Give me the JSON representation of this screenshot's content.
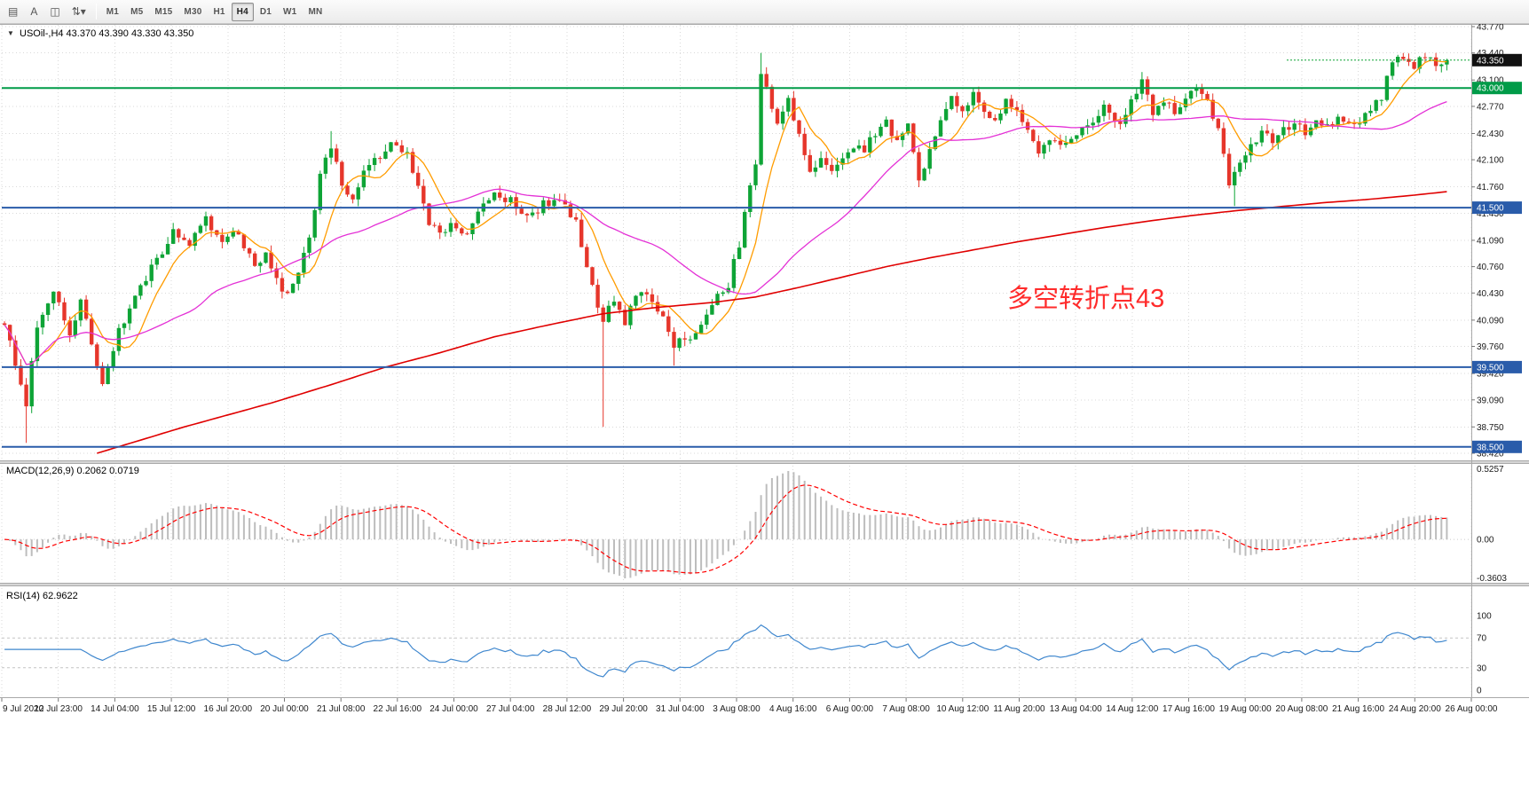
{
  "toolbar": {
    "icons": [
      {
        "name": "window-menu-icon",
        "glyph": "▤"
      },
      {
        "name": "text-label-icon",
        "glyph": "A"
      },
      {
        "name": "chart-template-icon",
        "glyph": "◫"
      },
      {
        "name": "updown-arrows-dropdown-icon",
        "glyph": "⇅▾"
      }
    ],
    "timeframes": [
      "M1",
      "M5",
      "M15",
      "M30",
      "H1",
      "H4",
      "D1",
      "W1",
      "MN"
    ],
    "selected_timeframe": "H4"
  },
  "chart_data": {
    "type": "candlestick",
    "title": "USOil-,H4 43.370 43.390 43.330 43.350",
    "symbol": "USOil-",
    "timeframe": "H4",
    "collapse_glyph": "▼",
    "ohlc_display": {
      "open": "43.370",
      "high": "43.390",
      "low": "43.330",
      "close": "43.350"
    },
    "price_axis": {
      "min": 38.42,
      "max": 43.77,
      "ticks": [
        "43.770",
        "43.440",
        "43.100",
        "42.770",
        "42.430",
        "42.100",
        "41.760",
        "41.430",
        "41.090",
        "40.760",
        "40.430",
        "40.090",
        "39.760",
        "39.420",
        "39.090",
        "38.750",
        "38.420"
      ]
    },
    "current_price": {
      "value": 43.35,
      "label": "43.350"
    },
    "levels": [
      {
        "price": 43.0,
        "label": "43.000",
        "color": "#009B48",
        "width": 2
      },
      {
        "price": 41.5,
        "label": "41.500",
        "color": "#2A5CAA",
        "width": 2
      },
      {
        "price": 39.5,
        "label": "39.500",
        "color": "#2A5CAA",
        "width": 2
      },
      {
        "price": 38.5,
        "label": "38.500",
        "color": "#2A5CAA",
        "width": 2
      }
    ],
    "colors": {
      "up": "#0EA436",
      "down": "#E6362B",
      "ma_fast": "#FF9C00",
      "ma_mid": "#E431D6",
      "ma_slow": "#E00000",
      "macd_hist": "#BDBDBD",
      "macd_signal": "#FF0000",
      "rsi": "#3F87CE",
      "grid": "#D9D9D9",
      "badge_current": "#111111"
    },
    "n_candles": 266,
    "close_waypoints": [
      [
        0,
        40.05
      ],
      [
        2,
        39.55
      ],
      [
        4,
        39.05
      ],
      [
        6,
        40.0
      ],
      [
        9,
        40.45
      ],
      [
        12,
        39.95
      ],
      [
        14,
        40.3
      ],
      [
        16,
        39.8
      ],
      [
        18,
        39.25
      ],
      [
        21,
        39.95
      ],
      [
        25,
        40.5
      ],
      [
        29,
        40.95
      ],
      [
        31,
        41.2
      ],
      [
        34,
        41.05
      ],
      [
        37,
        41.35
      ],
      [
        40,
        41.05
      ],
      [
        43,
        41.2
      ],
      [
        46,
        40.75
      ],
      [
        48,
        40.95
      ],
      [
        51,
        40.4
      ],
      [
        54,
        40.65
      ],
      [
        56,
        41.15
      ],
      [
        58,
        41.9
      ],
      [
        60,
        42.3
      ],
      [
        62,
        41.75
      ],
      [
        64,
        41.55
      ],
      [
        66,
        41.95
      ],
      [
        68,
        42.1
      ],
      [
        71,
        42.3
      ],
      [
        74,
        42.15
      ],
      [
        76,
        41.8
      ],
      [
        78,
        41.3
      ],
      [
        80,
        41.15
      ],
      [
        83,
        41.3
      ],
      [
        85,
        41.15
      ],
      [
        87,
        41.5
      ],
      [
        90,
        41.65
      ],
      [
        93,
        41.6
      ],
      [
        96,
        41.35
      ],
      [
        99,
        41.55
      ],
      [
        102,
        41.6
      ],
      [
        105,
        41.3
      ],
      [
        108,
        40.5
      ],
      [
        110,
        40.1
      ],
      [
        112,
        40.35
      ],
      [
        114,
        40.05
      ],
      [
        116,
        40.4
      ],
      [
        118,
        40.45
      ],
      [
        120,
        40.25
      ],
      [
        123,
        39.8
      ],
      [
        126,
        39.9
      ],
      [
        129,
        40.15
      ],
      [
        131,
        40.4
      ],
      [
        133,
        40.55
      ],
      [
        135,
        41.05
      ],
      [
        137,
        41.75
      ],
      [
        138,
        42.0
      ],
      [
        139,
        43.2
      ],
      [
        140,
        43.0
      ],
      [
        142,
        42.5
      ],
      [
        144,
        42.85
      ],
      [
        146,
        42.4
      ],
      [
        148,
        41.95
      ],
      [
        150,
        42.15
      ],
      [
        152,
        41.9
      ],
      [
        154,
        42.15
      ],
      [
        156,
        42.3
      ],
      [
        158,
        42.2
      ],
      [
        160,
        42.45
      ],
      [
        162,
        42.55
      ],
      [
        164,
        42.35
      ],
      [
        166,
        42.6
      ],
      [
        168,
        41.85
      ],
      [
        170,
        42.2
      ],
      [
        172,
        42.55
      ],
      [
        174,
        42.85
      ],
      [
        176,
        42.7
      ],
      [
        178,
        42.95
      ],
      [
        180,
        42.7
      ],
      [
        182,
        42.55
      ],
      [
        184,
        42.85
      ],
      [
        186,
        42.75
      ],
      [
        188,
        42.5
      ],
      [
        190,
        42.2
      ],
      [
        192,
        42.35
      ],
      [
        194,
        42.25
      ],
      [
        196,
        42.4
      ],
      [
        199,
        42.55
      ],
      [
        202,
        42.75
      ],
      [
        205,
        42.5
      ],
      [
        207,
        42.8
      ],
      [
        209,
        43.05
      ],
      [
        211,
        42.7
      ],
      [
        213,
        42.85
      ],
      [
        215,
        42.7
      ],
      [
        217,
        42.9
      ],
      [
        219,
        43.0
      ],
      [
        221,
        42.8
      ],
      [
        223,
        42.5
      ],
      [
        225,
        41.8
      ],
      [
        227,
        42.1
      ],
      [
        229,
        42.3
      ],
      [
        231,
        42.45
      ],
      [
        233,
        42.3
      ],
      [
        235,
        42.5
      ],
      [
        237,
        42.55
      ],
      [
        239,
        42.45
      ],
      [
        241,
        42.6
      ],
      [
        243,
        42.5
      ],
      [
        245,
        42.65
      ],
      [
        247,
        42.55
      ],
      [
        249,
        42.6
      ],
      [
        251,
        42.7
      ],
      [
        253,
        42.9
      ],
      [
        255,
        43.3
      ],
      [
        257,
        43.4
      ],
      [
        259,
        43.3
      ],
      [
        261,
        43.38
      ],
      [
        263,
        43.32
      ],
      [
        265,
        43.35
      ]
    ],
    "wick_events": [
      {
        "i": 4,
        "low": 38.55
      },
      {
        "i": 60,
        "high": 42.46
      },
      {
        "i": 110,
        "low": 38.75
      },
      {
        "i": 123,
        "low": 39.52
      },
      {
        "i": 139,
        "high": 43.44
      },
      {
        "i": 209,
        "high": 43.2
      },
      {
        "i": 226,
        "low": 41.52
      },
      {
        "i": 257,
        "high": 43.44
      }
    ],
    "ma_slow_waypoints": [
      [
        17,
        38.42
      ],
      [
        33,
        38.75
      ],
      [
        49,
        39.05
      ],
      [
        60,
        39.28
      ],
      [
        70,
        39.5
      ],
      [
        80,
        39.68
      ],
      [
        90,
        39.88
      ],
      [
        100,
        40.03
      ],
      [
        110,
        40.17
      ],
      [
        120,
        40.25
      ],
      [
        130,
        40.31
      ],
      [
        138,
        40.38
      ],
      [
        146,
        40.5
      ],
      [
        154,
        40.63
      ],
      [
        162,
        40.76
      ],
      [
        170,
        40.87
      ],
      [
        178,
        40.97
      ],
      [
        186,
        41.07
      ],
      [
        194,
        41.16
      ],
      [
        202,
        41.25
      ],
      [
        210,
        41.33
      ],
      [
        218,
        41.4
      ],
      [
        226,
        41.46
      ],
      [
        234,
        41.51
      ],
      [
        242,
        41.56
      ],
      [
        250,
        41.6
      ],
      [
        258,
        41.65
      ],
      [
        265,
        41.7
      ]
    ],
    "annotation": {
      "text": "多空转折点43",
      "color": "#FF2B2B"
    },
    "indicators": [
      {
        "name": "MACD",
        "label": "MACD(12,26,9) 0.2062 0.0719",
        "params": [
          12,
          26,
          9
        ],
        "values": [
          "0.2062",
          "0.0719"
        ],
        "axis_ticks": [
          "0.5257",
          "0.00",
          "-0.3603"
        ]
      },
      {
        "name": "RSI",
        "label": "RSI(14) 62.9622",
        "params": [
          14
        ],
        "value": "62.9622",
        "axis_ticks": [
          "100",
          "70",
          "30",
          "0"
        ],
        "levels": [
          70,
          30
        ]
      }
    ],
    "time_axis": [
      "9 Jul 2020",
      "12 Jul 23:00",
      "14 Jul 04:00",
      "15 Jul 12:00",
      "16 Jul 20:00",
      "20 Jul 00:00",
      "21 Jul 08:00",
      "22 Jul 16:00",
      "24 Jul 00:00",
      "27 Jul 04:00",
      "28 Jul 12:00",
      "29 Jul 20:00",
      "31 Jul 04:00",
      "3 Aug 08:00",
      "4 Aug 16:00",
      "6 Aug 00:00",
      "7 Aug 08:00",
      "10 Aug 12:00",
      "11 Aug 20:00",
      "13 Aug 04:00",
      "14 Aug 12:00",
      "17 Aug 16:00",
      "19 Aug 00:00",
      "20 Aug 08:00",
      "21 Aug 16:00",
      "24 Aug 20:00",
      "26 Aug 00:00"
    ]
  }
}
